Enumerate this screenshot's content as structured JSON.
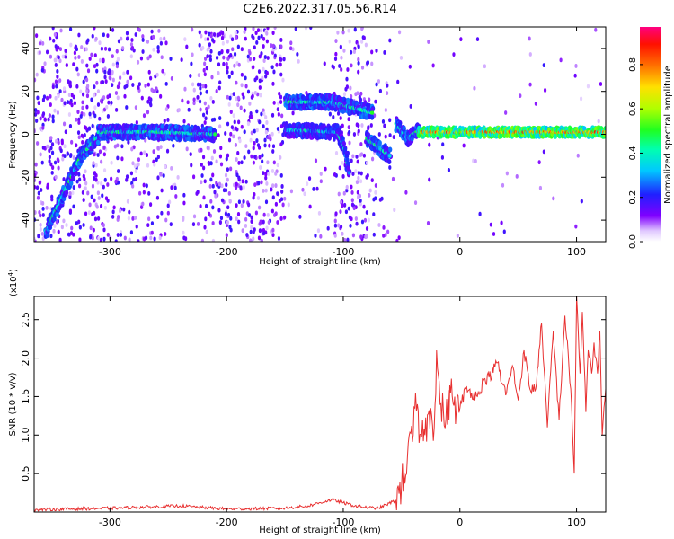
{
  "figure": {
    "title": "C2E6.2022.317.05.56.R14"
  },
  "chart_data": [
    {
      "type": "heatmap",
      "xlabel": "Height of straight line (km)",
      "ylabel": "Frequency (Hz)",
      "xlim": [
        -365,
        125
      ],
      "ylim": [
        -50,
        50
      ],
      "xticks": [
        -300,
        -200,
        -100,
        0,
        100
      ],
      "yticks": [
        -40,
        -20,
        0,
        20,
        40
      ],
      "colorbar": {
        "label": "Normalized spectral amplitude",
        "range": [
          0.0,
          0.97
        ],
        "ticks": [
          0.0,
          0.2,
          0.4,
          0.6,
          0.8
        ],
        "tick_labels": [
          "0.0",
          "0.2",
          "0.4",
          "0.6",
          "0.8"
        ],
        "colormap": "rainbow (white-violet-blue-cyan-green-yellow-red-magenta)"
      },
      "features": [
        {
          "x": [
            -355,
            -340,
            -325,
            -310
          ],
          "y": [
            -45,
            -28,
            -10,
            -1
          ],
          "amplitude": 0.35
        },
        {
          "x": [
            -310,
            -260,
            -210
          ],
          "y": [
            1,
            1,
            0
          ],
          "amplitude": 0.35
        },
        {
          "x": [
            -150,
            -105,
            -100,
            -95
          ],
          "y": [
            2,
            1,
            -5,
            -18
          ],
          "amplitude": 0.3
        },
        {
          "x": [
            -150,
            -110,
            -75
          ],
          "y": [
            15,
            15,
            10
          ],
          "amplitude": 0.35
        },
        {
          "x": [
            -80,
            -60
          ],
          "y": [
            -2,
            -10
          ],
          "amplitude": 0.35
        },
        {
          "x": [
            -55,
            -45,
            -35
          ],
          "y": [
            5,
            -2,
            2
          ],
          "amplitude": 0.35
        },
        {
          "x": [
            -35,
            125
          ],
          "y": [
            1,
            1
          ],
          "amplitude": 0.75
        }
      ]
    },
    {
      "type": "line",
      "xlabel": "Height of straight line (km)",
      "ylabel": "SNR (10 * v/v)",
      "y_multiplier_label": "(x10",
      "y_multiplier_exponent": "4",
      "xlim": [
        -365,
        125
      ],
      "ylim": [
        0,
        2.8
      ],
      "xticks": [
        -300,
        -200,
        -100,
        0,
        100
      ],
      "yticks": [
        0.5,
        1.0,
        1.5,
        2.0,
        2.5
      ],
      "ytick_labels": [
        "0.5",
        "1.0",
        "1.5",
        "2.0",
        "2.5"
      ],
      "series": [
        {
          "color": "#e83030",
          "x": [
            -365,
            -300,
            -240,
            -200,
            -150,
            -130,
            -110,
            -100,
            -90,
            -80,
            -70,
            -55,
            -50,
            -45,
            -40,
            -38,
            -35,
            -32,
            -30,
            -25,
            -22,
            -20,
            -17,
            -12,
            -8,
            -3,
            0,
            5,
            10,
            15,
            20,
            25,
            30,
            33,
            35,
            40,
            45,
            50,
            55,
            60,
            65,
            70,
            75,
            80,
            85,
            90,
            95,
            98,
            100,
            103,
            105,
            108,
            110,
            113,
            115,
            118,
            120,
            122,
            125
          ],
          "y": [
            0.03,
            0.05,
            0.08,
            0.04,
            0.05,
            0.08,
            0.16,
            0.12,
            0.08,
            0.06,
            0.05,
            0.15,
            0.35,
            0.7,
            1.0,
            1.55,
            0.9,
            1.2,
            1.0,
            1.35,
            1.1,
            2.1,
            1.4,
            1.2,
            1.55,
            1.35,
            1.35,
            1.6,
            1.55,
            1.5,
            1.7,
            1.75,
            1.88,
            1.95,
            1.7,
            1.55,
            1.9,
            1.45,
            2.1,
            1.6,
            1.6,
            2.45,
            1.1,
            2.35,
            1.2,
            2.55,
            1.6,
            0.5,
            2.8,
            1.8,
            2.6,
            1.3,
            2.1,
            1.8,
            2.2,
            1.8,
            2.35,
            1.0,
            1.6
          ]
        }
      ]
    }
  ]
}
